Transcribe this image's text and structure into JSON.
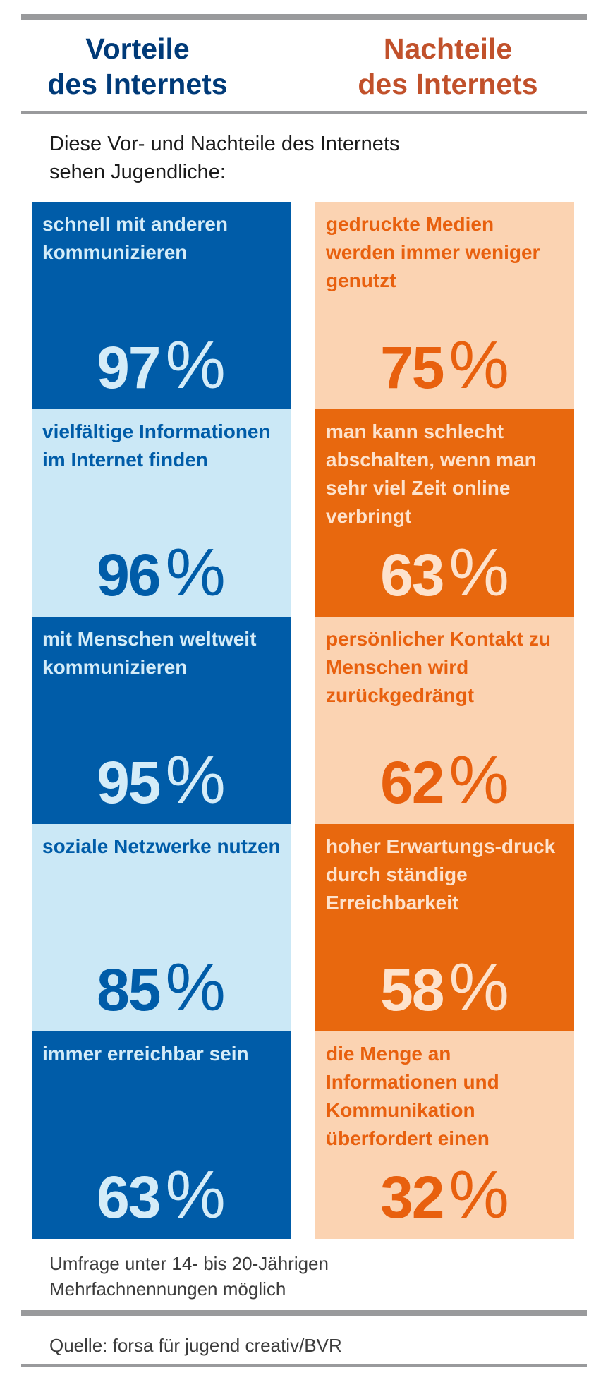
{
  "colors": {
    "rule": "#999a9c",
    "pro_heading": "#003a78",
    "con_heading": "#c1512b",
    "pro_dark_bg": "#005ca8",
    "pro_dark_text": "#d4ecf8",
    "pro_light_bg": "#cbe8f6",
    "pro_light_text": "#005ca8",
    "con_light_bg": "#fbd3b2",
    "con_light_text": "#e8600e",
    "con_dark_bg": "#e8680e",
    "con_dark_text": "#fde2cc"
  },
  "header": {
    "pro_title_line1": "Vorteile",
    "pro_title_line2": "des Internets",
    "con_title_line1": "Nachteile",
    "con_title_line2": "des Internets"
  },
  "intro": {
    "line1": "Diese Vor- und Nachteile des Internets",
    "line2": "sehen Jugendliche:"
  },
  "chart_data": {
    "type": "table",
    "unit": "%",
    "series": [
      {
        "name": "Vorteile des Internets",
        "items": [
          {
            "label": "schnell mit anderen kommunizieren",
            "value": 97
          },
          {
            "label": "vielfältige Informationen im Internet finden",
            "value": 96
          },
          {
            "label": "mit Menschen weltweit kommunizieren",
            "value": 95
          },
          {
            "label": "soziale Netzwerke nutzen",
            "value": 85
          },
          {
            "label": "immer erreichbar sein",
            "value": 63
          }
        ]
      },
      {
        "name": "Nachteile des Internets",
        "items": [
          {
            "label": "gedruckte Medien werden immer weniger genutzt",
            "value": 75
          },
          {
            "label": "man kann schlecht abschalten, wenn man sehr viel Zeit online verbringt",
            "value": 63
          },
          {
            "label": "persönlicher Kontakt zu Menschen wird zurückgedrängt",
            "value": 62
          },
          {
            "label": "hoher Erwartungs-druck durch ständige Erreichbarkeit",
            "value": 58
          },
          {
            "label": "die Menge an Informationen und Kommunikation überfordert einen",
            "value": 32
          }
        ]
      }
    ]
  },
  "footer": {
    "note_line1": "Umfrage unter 14- bis 20-Jährigen",
    "note_line2": "Mehrfachnennungen möglich",
    "source": "Quelle: forsa für jugend creativ/BVR"
  }
}
